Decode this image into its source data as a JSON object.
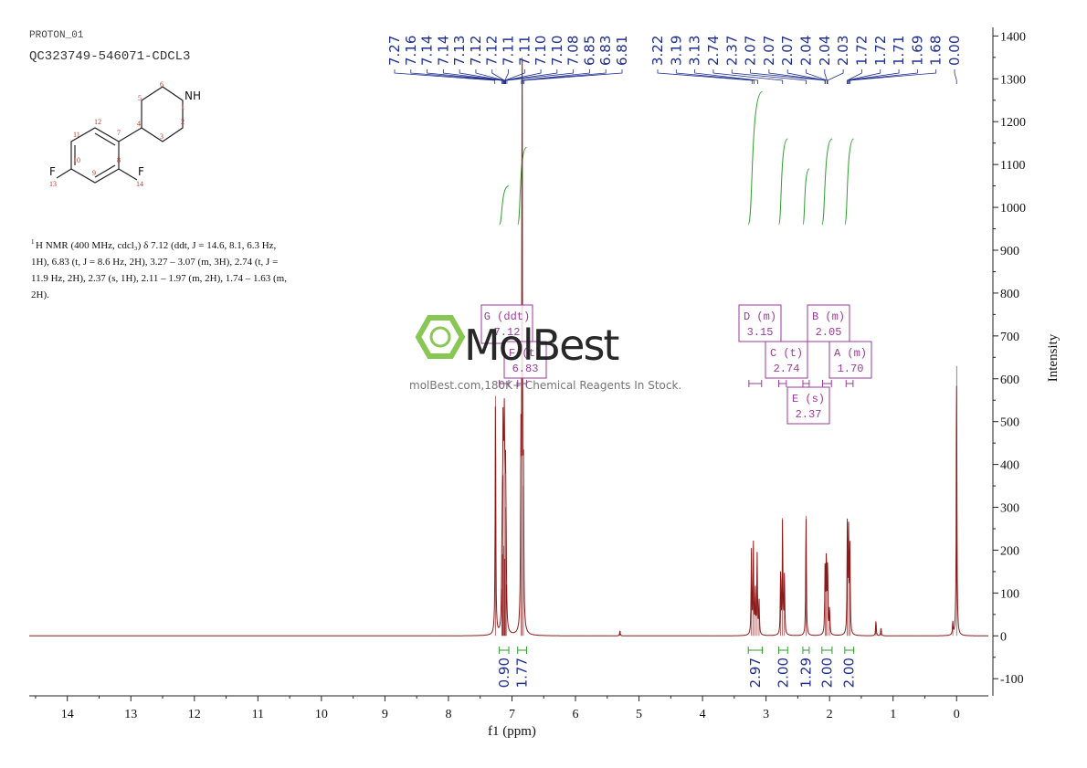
{
  "header": {
    "experiment": "PROTON_01",
    "sample": "QC323749-546071-CDCL3"
  },
  "structure": {
    "label_nh": "NH",
    "label_f1": "F",
    "label_f2": "F",
    "atom_numbers": [
      "1",
      "2",
      "3",
      "4",
      "5",
      "6",
      "7",
      "8",
      "9",
      "10",
      "11",
      "12",
      "13",
      "14"
    ]
  },
  "nmr_text": {
    "sup": "1",
    "lines": [
      "H NMR (400 MHz, cdcl₃) δ 7.12 (ddt, J = 14.6, 8.1, 6.3 Hz,",
      "1H), 6.83 (t, J = 8.6 Hz, 2H), 3.27 – 3.07 (m, 3H), 2.74 (t, J =",
      "11.9 Hz, 2H), 2.37 (s, 1H), 2.11 – 1.97 (m, 2H), 1.74 – 1.63 (m,",
      "2H)."
    ]
  },
  "watermark": {
    "brand": "MolBest",
    "tagline": "molBest.com,180K+ Chemical Reagents In Stock."
  },
  "colors": {
    "spectrum": "#8b1a1a",
    "peak_labels": "#1f2f8f",
    "integral": "#2e9e2e",
    "multiplet_box": "#9a3a9a",
    "watermark_green": "#7dc242"
  },
  "chart_data": {
    "type": "line",
    "xlabel": "f1 (ppm)",
    "ylabel": "Intensity",
    "xlim": [
      14.6,
      -0.5
    ],
    "ylim": [
      -140,
      1420
    ],
    "x_ticks": [
      14,
      13,
      12,
      11,
      10,
      9,
      8,
      7,
      6,
      5,
      4,
      3,
      2,
      1,
      0
    ],
    "y_ticks": [
      -100,
      0,
      100,
      200,
      300,
      400,
      500,
      600,
      700,
      800,
      900,
      1000,
      1100,
      1200,
      1300,
      1400
    ],
    "peak_labels": [
      "7.27",
      "7.16",
      "7.14",
      "7.14",
      "7.13",
      "7.12",
      "7.12",
      "7.11",
      "7.11",
      "7.10",
      "7.10",
      "7.08",
      "6.85",
      "6.83",
      "6.81",
      "3.22",
      "3.19",
      "3.13",
      "2.74",
      "2.37",
      "2.07",
      "2.07",
      "2.07",
      "2.04",
      "2.04",
      "2.03",
      "1.72",
      "1.72",
      "1.71",
      "1.69",
      "1.68",
      "0.00"
    ],
    "peaks": [
      {
        "ppm": 7.26,
        "height": 560
      },
      {
        "ppm": 7.16,
        "height": 110
      },
      {
        "ppm": 7.15,
        "height": 190
      },
      {
        "ppm": 7.14,
        "height": 375
      },
      {
        "ppm": 7.13,
        "height": 210
      },
      {
        "ppm": 7.12,
        "height": 380
      },
      {
        "ppm": 7.11,
        "height": 180
      },
      {
        "ppm": 7.1,
        "height": 300
      },
      {
        "ppm": 7.09,
        "height": 120
      },
      {
        "ppm": 6.86,
        "height": 400
      },
      {
        "ppm": 6.84,
        "height": 1350
      },
      {
        "ppm": 6.82,
        "height": 350
      },
      {
        "ppm": 5.3,
        "height": 12
      },
      {
        "ppm": 3.23,
        "height": 195
      },
      {
        "ppm": 3.2,
        "height": 210
      },
      {
        "ppm": 3.17,
        "height": 100
      },
      {
        "ppm": 3.14,
        "height": 190
      },
      {
        "ppm": 3.11,
        "height": 80
      },
      {
        "ppm": 2.77,
        "height": 150
      },
      {
        "ppm": 2.74,
        "height": 275
      },
      {
        "ppm": 2.71,
        "height": 140
      },
      {
        "ppm": 2.37,
        "height": 280
      },
      {
        "ppm": 2.07,
        "height": 170
      },
      {
        "ppm": 2.05,
        "height": 180
      },
      {
        "ppm": 2.03,
        "height": 160
      },
      {
        "ppm": 2.0,
        "height": 60
      },
      {
        "ppm": 1.72,
        "height": 250
      },
      {
        "ppm": 1.7,
        "height": 230
      },
      {
        "ppm": 1.68,
        "height": 200
      },
      {
        "ppm": 1.27,
        "height": 35
      },
      {
        "ppm": 1.19,
        "height": 18
      },
      {
        "ppm": 0.06,
        "height": 30
      },
      {
        "ppm": 0.0,
        "height": 630
      }
    ],
    "integrals": [
      {
        "value": "0.90",
        "from": 7.2,
        "to": 7.05,
        "curve_start": 960,
        "curve_end": 1050
      },
      {
        "value": "1.77",
        "from": 6.91,
        "to": 6.77,
        "curve_start": 960,
        "curve_end": 1140
      },
      {
        "value": "2.97",
        "from": 3.28,
        "to": 3.06,
        "curve_start": 960,
        "curve_end": 1270
      },
      {
        "value": "2.00",
        "from": 2.8,
        "to": 2.66,
        "curve_start": 960,
        "curve_end": 1160
      },
      {
        "value": "1.29",
        "from": 2.42,
        "to": 2.32,
        "curve_start": 960,
        "curve_end": 1090
      },
      {
        "value": "2.00",
        "from": 2.12,
        "to": 1.96,
        "curve_start": 960,
        "curve_end": 1160
      },
      {
        "value": "2.00",
        "from": 1.76,
        "to": 1.62,
        "curve_start": 960,
        "curve_end": 1160
      }
    ],
    "multiplets": [
      {
        "label": "G (ddt)",
        "shift": "7.12",
        "from": 7.2,
        "to": 7.05
      },
      {
        "label": "F (t)",
        "shift": "6.83",
        "from": 6.91,
        "to": 6.77
      },
      {
        "label": "D (m)",
        "shift": "3.15",
        "from": 3.27,
        "to": 3.07
      },
      {
        "label": "C (t)",
        "shift": "2.74",
        "from": 2.8,
        "to": 2.68
      },
      {
        "label": "E (s)",
        "shift": "2.37",
        "from": 2.42,
        "to": 2.32
      },
      {
        "label": "B (m)",
        "shift": "2.05",
        "from": 2.11,
        "to": 1.97
      },
      {
        "label": "A (m)",
        "shift": "1.70",
        "from": 1.74,
        "to": 1.63
      }
    ]
  }
}
